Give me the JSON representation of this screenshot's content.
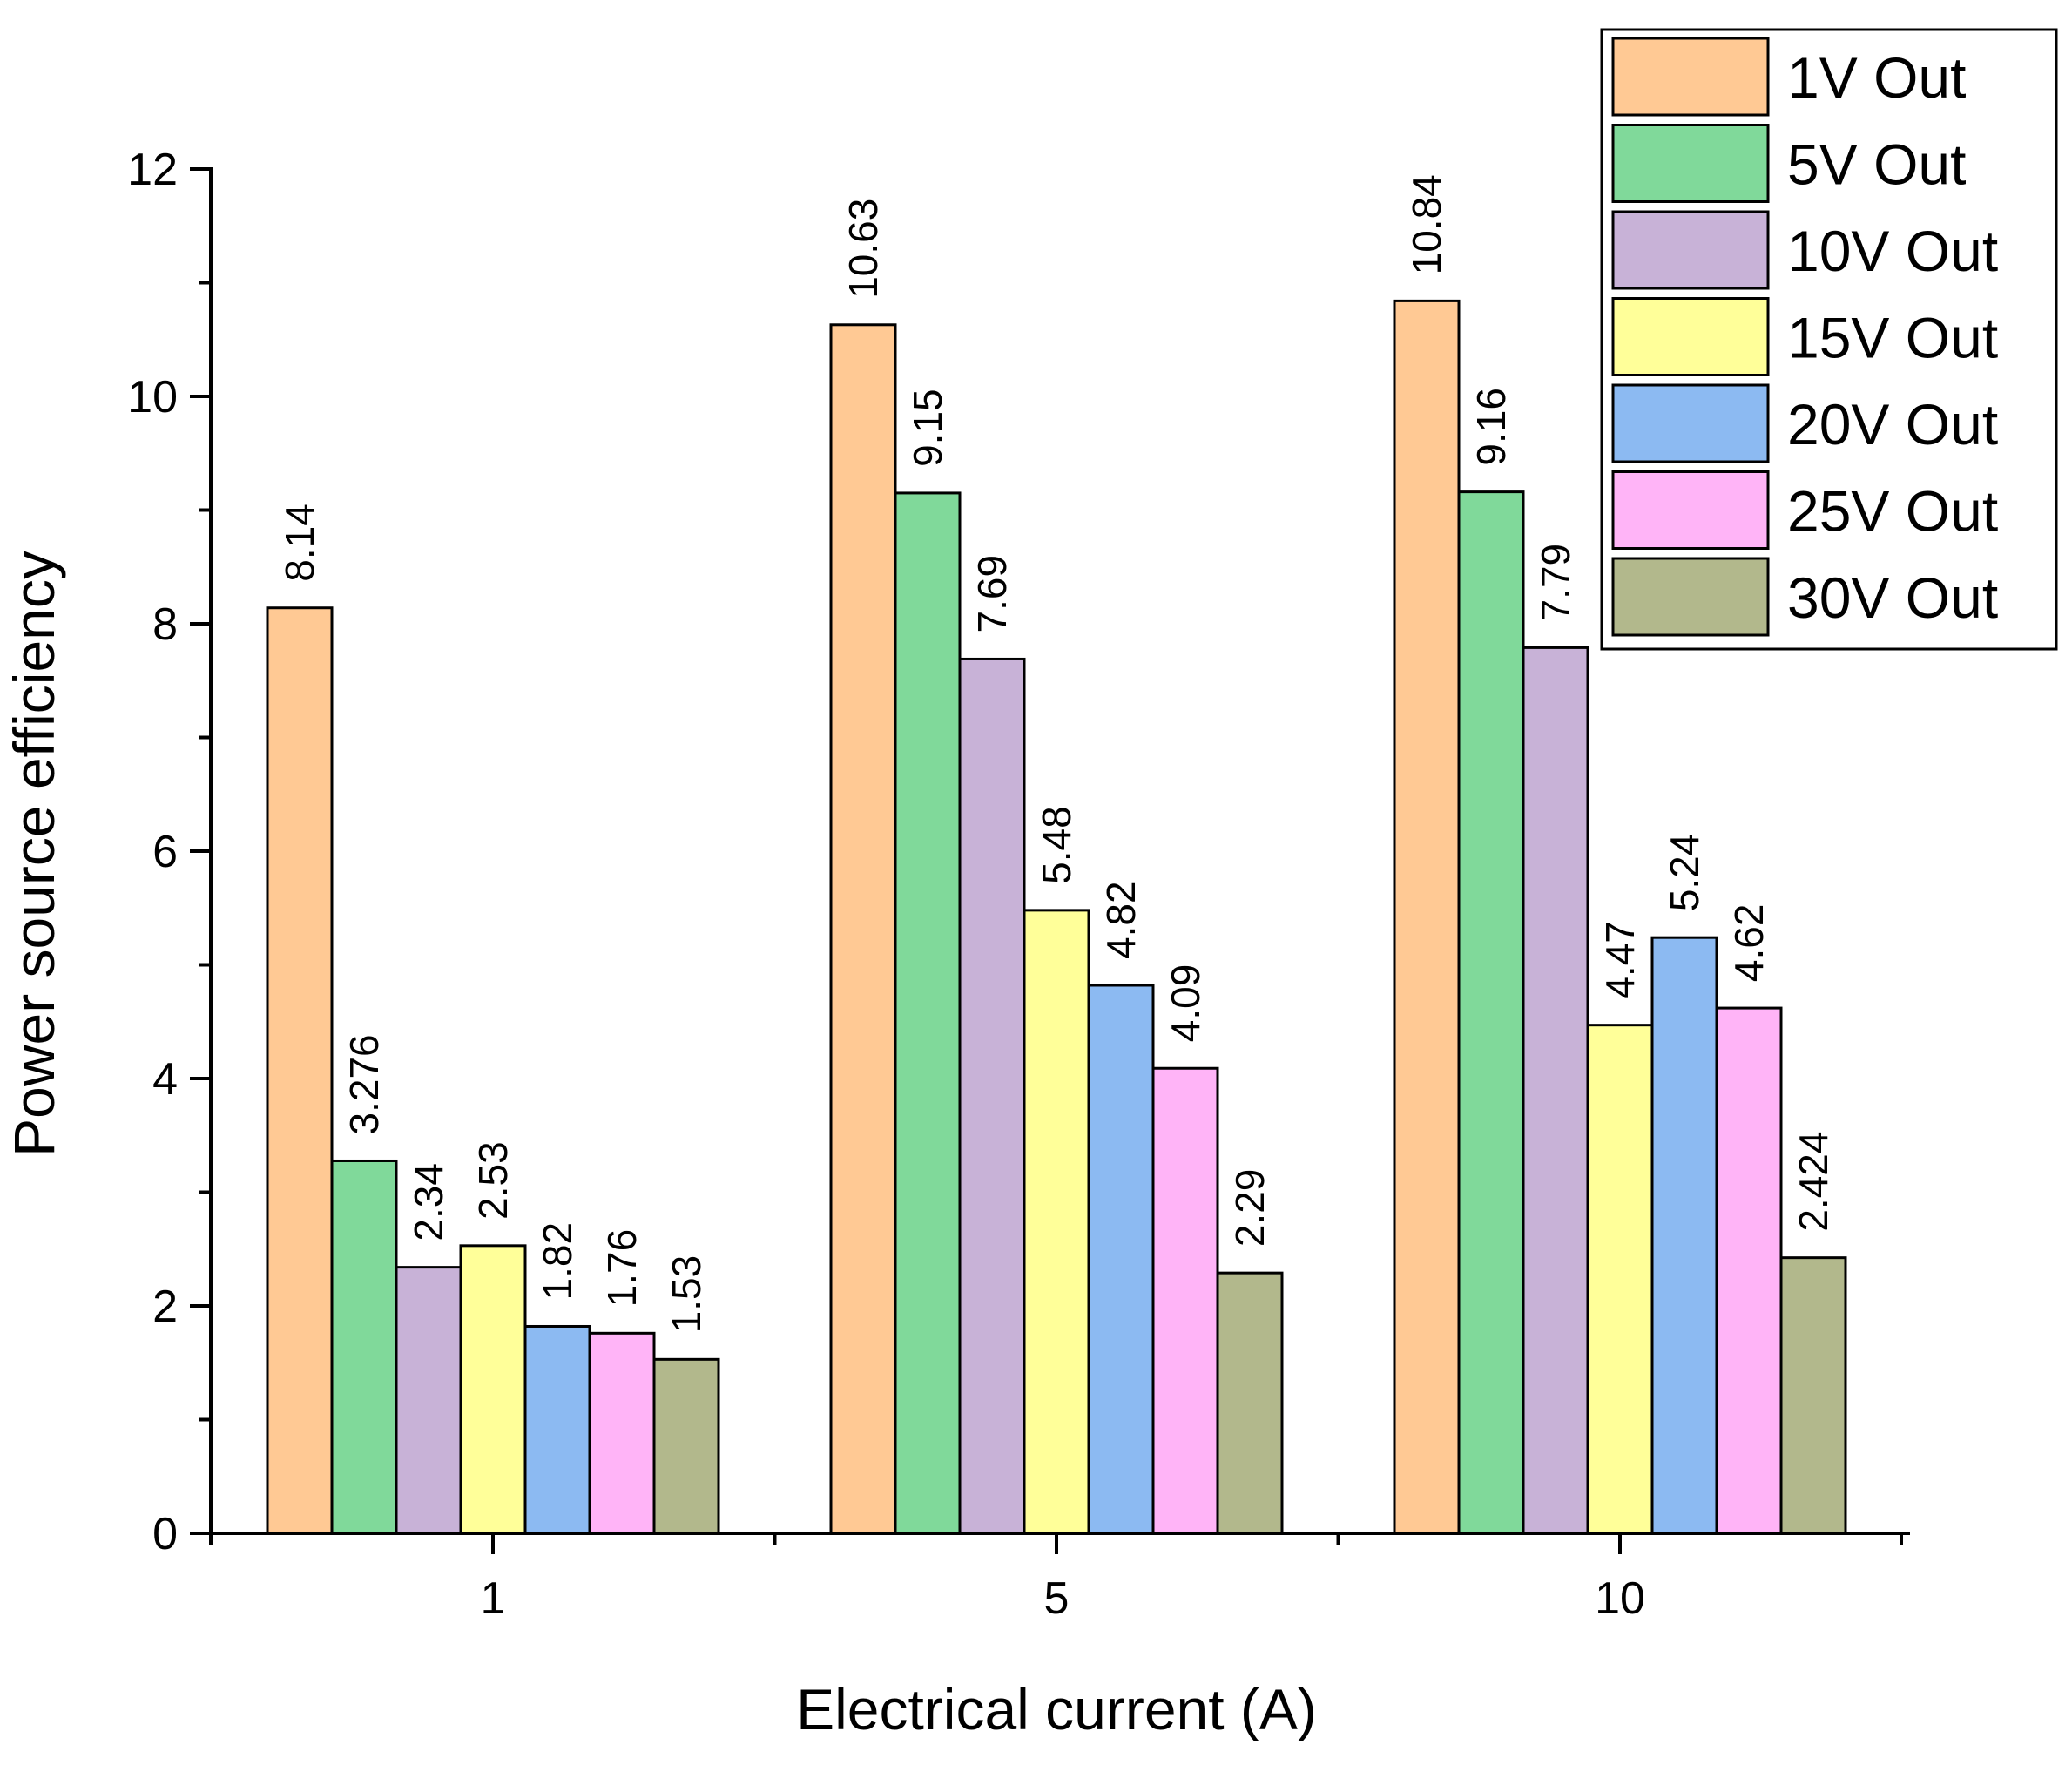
{
  "chart_data": {
    "type": "bar",
    "title": "",
    "xlabel": "Electrical current (A)",
    "ylabel": "Power source efficiency",
    "categories": [
      "1",
      "5",
      "10"
    ],
    "ylim": [
      0,
      12
    ],
    "yticks": [
      "0",
      "2",
      "4",
      "6",
      "8",
      "10",
      "12"
    ],
    "grid": false,
    "legend_position": "top-right",
    "series": [
      {
        "name": "1V Out",
        "color": "#FFC994",
        "values": [
          8.14,
          10.63,
          10.84
        ],
        "labels": [
          "8.14",
          "10.63",
          "10.84"
        ]
      },
      {
        "name": "5V Out",
        "color": "#80D99A",
        "values": [
          3.276,
          9.15,
          9.16
        ],
        "labels": [
          "3.276",
          "9.15",
          "9.16"
        ]
      },
      {
        "name": "10V Out",
        "color": "#C8B2D7",
        "values": [
          2.34,
          7.69,
          7.79
        ],
        "labels": [
          "2.34",
          "7.69",
          "7.79"
        ]
      },
      {
        "name": "15V Out",
        "color": "#FFFF99",
        "values": [
          2.53,
          5.48,
          4.47
        ],
        "labels": [
          "2.53",
          "5.48",
          "4.47"
        ]
      },
      {
        "name": "20V Out",
        "color": "#8CBAF2",
        "values": [
          1.82,
          4.82,
          5.24
        ],
        "labels": [
          "1.82",
          "4.82",
          "5.24"
        ]
      },
      {
        "name": "25V Out",
        "color": "#FFB4F7",
        "values": [
          1.76,
          4.09,
          4.62
        ],
        "labels": [
          "1.76",
          "4.09",
          "4.62"
        ]
      },
      {
        "name": "30V Out",
        "color": "#B2B88C",
        "values": [
          1.53,
          2.29,
          2.424
        ],
        "labels": [
          "1.53",
          "2.29",
          "2.424"
        ]
      }
    ]
  }
}
